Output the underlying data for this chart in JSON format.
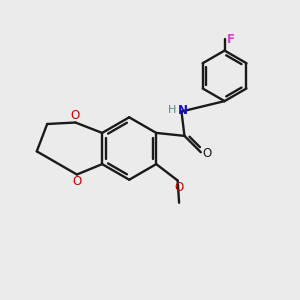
{
  "bg_color": "#ebebeb",
  "bond_color": "#1a1a1a",
  "oxygen_color": "#cc0000",
  "nitrogen_color": "#1010cc",
  "fluorine_color": "#cc44cc",
  "hydrogen_color": "#558888",
  "line_width": 1.7,
  "figsize": [
    3.0,
    3.0
  ],
  "dpi": 100,
  "xlim": [
    0,
    10
  ],
  "ylim": [
    0,
    10
  ]
}
